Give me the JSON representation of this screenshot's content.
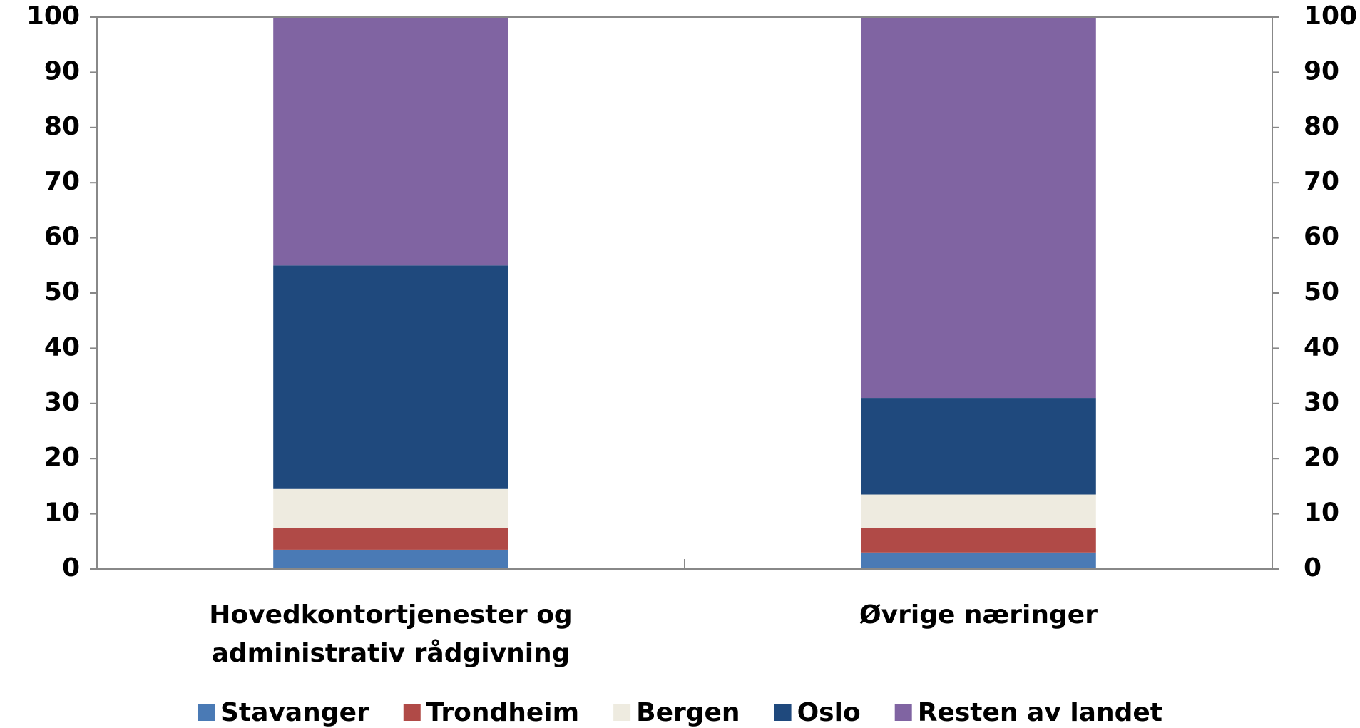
{
  "chart_data": {
    "type": "stacked_bar",
    "categories": [
      "Hovedkontortjenester og administrativ rådgivning",
      "Øvrige næringer"
    ],
    "series": [
      {
        "name": "Stavanger",
        "color": "#4a7ab5",
        "values": [
          3.5,
          3
        ]
      },
      {
        "name": "Trondheim",
        "color": "#b04a47",
        "values": [
          4,
          4.5
        ]
      },
      {
        "name": "Bergen",
        "color": "#eeebe0",
        "values": [
          7,
          6
        ]
      },
      {
        "name": "Oslo",
        "color": "#1f497d",
        "values": [
          40.5,
          17.5
        ]
      },
      {
        "name": "Resten av landet",
        "color": "#8064a2",
        "values": [
          45,
          69
        ]
      }
    ],
    "ylim": [
      0,
      100
    ],
    "yticks": [
      0,
      10,
      20,
      30,
      40,
      50,
      60,
      70,
      80,
      90,
      100
    ],
    "y2lim": [
      0,
      100
    ],
    "y2ticks": [
      0,
      10,
      20,
      30,
      40,
      50,
      60,
      70,
      80,
      90,
      100
    ],
    "grid": false,
    "legend": "bottom"
  }
}
